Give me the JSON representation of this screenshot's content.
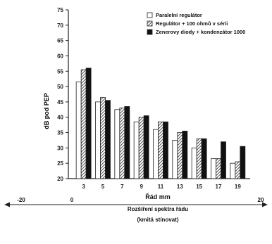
{
  "chart_data": {
    "type": "bar",
    "ylabel": "dB pod PEP",
    "xlabel": "Řád mm",
    "ylim": [
      20,
      75
    ],
    "yticks": [
      20,
      25,
      30,
      35,
      40,
      45,
      50,
      55,
      60,
      65,
      70,
      75
    ],
    "ytick_labels": [
      "20",
      "25",
      "30",
      "35",
      "40",
      "45",
      "50",
      "55",
      "60",
      "65",
      "70",
      "75"
    ],
    "categories": [
      "3",
      "5",
      "7",
      "9",
      "11",
      "13",
      "15",
      "17",
      "19"
    ],
    "series": [
      {
        "name": "Paralelní regulátor",
        "pattern": "white",
        "values": [
          51.5,
          45,
          42.5,
          38.5,
          36,
          32.5,
          30,
          26.5,
          25
        ]
      },
      {
        "name": "Regulátor + 100 ohmů v sérii",
        "pattern": "hatched",
        "values": [
          55.5,
          46.5,
          43,
          40,
          38.5,
          35,
          33,
          26.5,
          25.5
        ]
      },
      {
        "name": "Zenerovy diody + kondenzátor 1000",
        "pattern": "black",
        "values": [
          56,
          45.5,
          43.5,
          40.5,
          38.5,
          35.5,
          33,
          32,
          30.5
        ]
      }
    ],
    "legend_position": "top-right",
    "grid": false
  },
  "footer": {
    "arrow_left_label": "-20",
    "arrow_mid_label": "0",
    "arrow_right_label": "20",
    "caption_line1": "Rozšíření spektra řádu",
    "caption_line2": "(kmitá stínovat)"
  },
  "colors": {
    "black": "#111111",
    "white": "#ffffff",
    "hatch": "#222222"
  }
}
